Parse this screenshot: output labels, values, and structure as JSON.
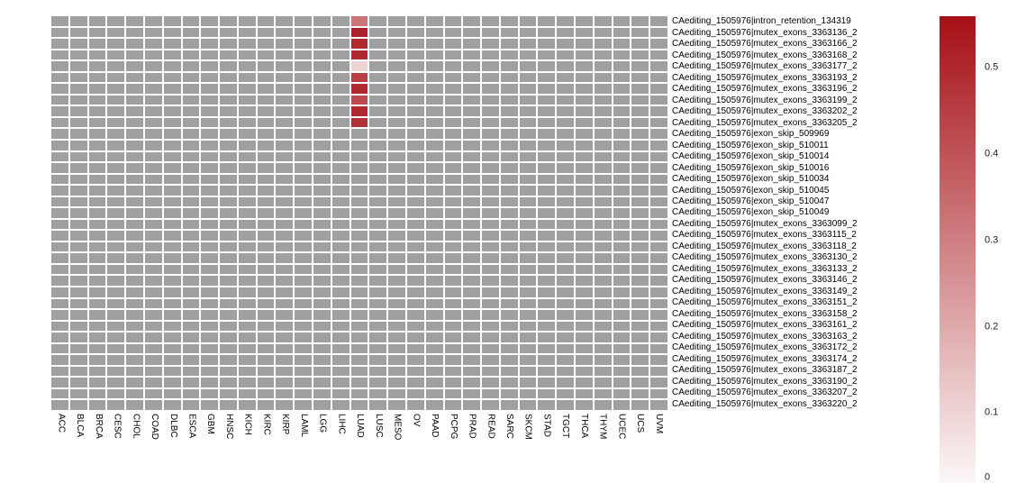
{
  "figure": {
    "background": "#ffffff"
  },
  "chart_data": {
    "type": "heatmap",
    "title": "",
    "xlabel": "",
    "ylabel": "",
    "columns": [
      "ACC",
      "BLCA",
      "BRCA",
      "CESC",
      "CHOL",
      "COAD",
      "DLBC",
      "ESCA",
      "GBM",
      "HNSC",
      "KICH",
      "KIRC",
      "KIRP",
      "LAML",
      "LGG",
      "LIHC",
      "LUAD",
      "LUSC",
      "MESO",
      "OV",
      "PAAD",
      "PCPG",
      "PRAD",
      "READ",
      "SARC",
      "SKCM",
      "STAD",
      "TGCT",
      "THCA",
      "THYM",
      "UCEC",
      "UCS",
      "UVM"
    ],
    "rows": [
      "CAediting_1505976|intron_retention_134319",
      "CAediting_1505976|mutex_exons_3363136_2",
      "CAediting_1505976|mutex_exons_3363166_2",
      "CAediting_1505976|mutex_exons_3363168_2",
      "CAediting_1505976|mutex_exons_3363177_2",
      "CAediting_1505976|mutex_exons_3363193_2",
      "CAediting_1505976|mutex_exons_3363196_2",
      "CAediting_1505976|mutex_exons_3363199_2",
      "CAediting_1505976|mutex_exons_3363202_2",
      "CAediting_1505976|mutex_exons_3363205_2",
      "CAediting_1505976|exon_skip_509969",
      "CAediting_1505976|exon_skip_510011",
      "CAediting_1505976|exon_skip_510014",
      "CAediting_1505976|exon_skip_510016",
      "CAediting_1505976|exon_skip_510034",
      "CAediting_1505976|exon_skip_510045",
      "CAediting_1505976|exon_skip_510047",
      "CAediting_1505976|exon_skip_510049",
      "CAediting_1505976|mutex_exons_3363099_2",
      "CAediting_1505976|mutex_exons_3363115_2",
      "CAediting_1505976|mutex_exons_3363118_2",
      "CAediting_1505976|mutex_exons_3363130_2",
      "CAediting_1505976|mutex_exons_3363133_2",
      "CAediting_1505976|mutex_exons_3363146_2",
      "CAediting_1505976|mutex_exons_3363149_2",
      "CAediting_1505976|mutex_exons_3363151_2",
      "CAediting_1505976|mutex_exons_3363158_2",
      "CAediting_1505976|mutex_exons_3363161_2",
      "CAediting_1505976|mutex_exons_3363163_2",
      "CAediting_1505976|mutex_exons_3363172_2",
      "CAediting_1505976|mutex_exons_3363174_2",
      "CAediting_1505976|mutex_exons_3363187_2",
      "CAediting_1505976|mutex_exons_3363190_2",
      "CAediting_1505976|mutex_exons_3363207_2",
      "CAediting_1505976|mutex_exons_3363220_2"
    ],
    "na_color": "#a0a0a0",
    "value_range": [
      0,
      0.56
    ],
    "highlight_column": "LUAD",
    "cells": [
      {
        "row": "CAediting_1505976|intron_retention_134319",
        "col": "LUAD",
        "value": 0.32
      },
      {
        "row": "CAediting_1505976|mutex_exons_3363136_2",
        "col": "LUAD",
        "value": 0.52
      },
      {
        "row": "CAediting_1505976|mutex_exons_3363166_2",
        "col": "LUAD",
        "value": 0.5
      },
      {
        "row": "CAediting_1505976|mutex_exons_3363168_2",
        "col": "LUAD",
        "value": 0.5
      },
      {
        "row": "CAediting_1505976|mutex_exons_3363177_2",
        "col": "LUAD",
        "value": 0.1
      },
      {
        "row": "CAediting_1505976|mutex_exons_3363193_2",
        "col": "LUAD",
        "value": 0.45
      },
      {
        "row": "CAediting_1505976|mutex_exons_3363196_2",
        "col": "LUAD",
        "value": 0.5
      },
      {
        "row": "CAediting_1505976|mutex_exons_3363199_2",
        "col": "LUAD",
        "value": 0.42
      },
      {
        "row": "CAediting_1505976|mutex_exons_3363202_2",
        "col": "LUAD",
        "value": 0.5
      },
      {
        "row": "CAediting_1505976|mutex_exons_3363205_2",
        "col": "LUAD",
        "value": 0.48
      }
    ],
    "colorbar": {
      "ticks": [
        "0.5",
        "0.4",
        "0.3",
        "0.2",
        "0.1",
        "0"
      ],
      "tick_values": [
        0.5,
        0.4,
        0.3,
        0.2,
        0.1,
        0
      ],
      "max_color": "#a50f15",
      "min_color": "#ffffff",
      "legend_position": "right"
    }
  }
}
